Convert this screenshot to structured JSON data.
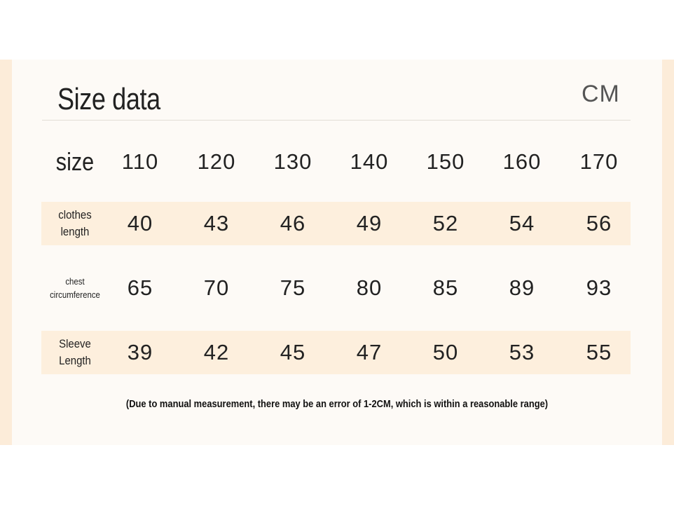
{
  "header": {
    "title": "Size data",
    "unit": "CM"
  },
  "table": {
    "header": {
      "label": "size",
      "cells": [
        "110",
        "120",
        "130",
        "140",
        "150",
        "160",
        "170"
      ]
    },
    "rows": [
      {
        "label": "clothes length",
        "cells": [
          "40",
          "43",
          "46",
          "49",
          "52",
          "54",
          "56"
        ]
      },
      {
        "label": "chest circumference",
        "cells": [
          "65",
          "70",
          "75",
          "80",
          "85",
          "89",
          "93"
        ]
      },
      {
        "label": "Sleeve Length",
        "cells": [
          "39",
          "42",
          "45",
          "47",
          "50",
          "53",
          "55"
        ]
      }
    ]
  },
  "note": "(Due to manual measurement, there may be an error of 1-2CM, which is within a reasonable range)"
}
